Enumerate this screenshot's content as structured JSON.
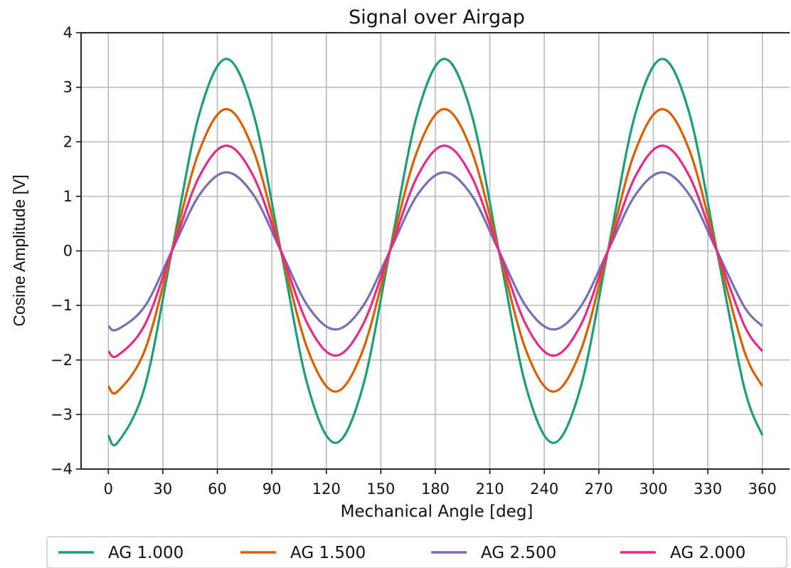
{
  "chart_data": {
    "type": "line",
    "title": "Signal over Airgap",
    "xlabel": "Mechanical Angle [deg]",
    "ylabel": "Cosine Amplitude [V]",
    "xlim": [
      -15,
      375
    ],
    "ylim": [
      -4,
      4
    ],
    "xticks": [
      0,
      30,
      60,
      90,
      120,
      150,
      180,
      210,
      240,
      270,
      300,
      330,
      360
    ],
    "yticks": [
      -4,
      -3,
      -2,
      -1,
      0,
      1,
      2,
      3,
      4
    ],
    "xtick_labels": [
      "0",
      "30",
      "60",
      "90",
      "120",
      "150",
      "180",
      "210",
      "240",
      "270",
      "300",
      "330",
      "360"
    ],
    "ytick_labels": [
      "−4",
      "−3",
      "−2",
      "−1",
      "0",
      "1",
      "2",
      "3",
      "4"
    ],
    "grid": true,
    "legend_position": "bottom",
    "x": [
      0,
      5,
      20,
      35,
      50,
      65,
      80,
      95,
      110,
      125,
      140,
      155,
      170,
      185,
      200,
      215,
      230,
      245,
      260,
      275,
      290,
      305,
      320,
      335,
      350,
      360
    ],
    "series": [
      {
        "name": "AG 1.000",
        "color": "#1b9e77",
        "values": [
          -3.38,
          -3.52,
          -2.5,
          0.0,
          2.5,
          3.52,
          2.5,
          0.0,
          -2.5,
          -3.52,
          -2.5,
          0.0,
          2.5,
          3.52,
          2.5,
          0.0,
          -2.5,
          -3.52,
          -2.5,
          0.0,
          2.5,
          3.52,
          2.5,
          0.0,
          -2.5,
          -3.38
        ]
      },
      {
        "name": "AG 1.500",
        "color": "#d95f02",
        "values": [
          -2.48,
          -2.58,
          -1.83,
          0.0,
          1.83,
          2.6,
          1.83,
          0.0,
          -1.83,
          -2.58,
          -1.83,
          0.0,
          1.83,
          2.6,
          1.83,
          0.0,
          -1.83,
          -2.58,
          -1.83,
          0.0,
          1.83,
          2.6,
          1.83,
          0.0,
          -1.83,
          -2.48
        ]
      },
      {
        "name": "AG 2.500",
        "color": "#7570b3",
        "values": [
          -1.38,
          -1.44,
          -1.02,
          0.0,
          1.02,
          1.44,
          1.02,
          0.0,
          -1.02,
          -1.44,
          -1.02,
          0.0,
          1.02,
          1.44,
          1.02,
          0.0,
          -1.02,
          -1.44,
          -1.02,
          0.0,
          1.02,
          1.44,
          1.02,
          0.0,
          -1.02,
          -1.38
        ]
      },
      {
        "name": "AG 2.000",
        "color": "#e7298a",
        "values": [
          -1.84,
          -1.92,
          -1.36,
          0.0,
          1.36,
          1.93,
          1.36,
          0.0,
          -1.36,
          -1.92,
          -1.36,
          0.0,
          1.36,
          1.93,
          1.36,
          0.0,
          -1.36,
          -1.92,
          -1.36,
          0.0,
          1.36,
          1.93,
          1.36,
          0.0,
          -1.36,
          -1.84
        ]
      }
    ]
  }
}
